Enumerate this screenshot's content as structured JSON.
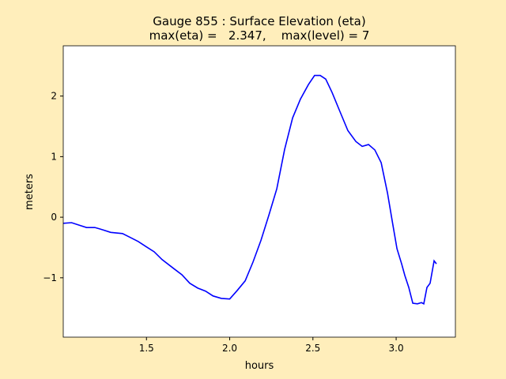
{
  "chart_data": {
    "type": "line",
    "title": [
      "Gauge 855 : Surface Elevation (eta)",
      "max(eta) =   2.347,    max(level) = 7"
    ],
    "x_label": "hours",
    "y_label": "meters",
    "xlim": [
      1.0,
      3.356
    ],
    "ylim": [
      -1.98,
      2.83
    ],
    "xticks": [
      1.5,
      {
        "value": 2.0,
        "label": "2.0"
      },
      2.5,
      {
        "value": 3.0,
        "label": "3.0"
      }
    ],
    "yticks": [
      {
        "value": -1,
        "label": "−1"
      },
      0,
      1,
      2
    ],
    "series": [
      {
        "color": "#0000ff",
        "x": [
          1.0,
          1.05,
          1.095,
          1.14,
          1.19,
          1.24,
          1.285,
          1.356,
          1.4,
          1.45,
          1.5,
          1.546,
          1.594,
          1.665,
          1.713,
          1.76,
          1.808,
          1.855,
          1.9,
          1.95,
          2.0,
          2.045,
          2.093,
          2.14,
          2.188,
          2.235,
          2.283,
          2.33,
          2.378,
          2.425,
          2.473,
          2.51,
          2.544,
          2.577,
          2.615,
          2.663,
          2.71,
          2.758,
          2.796,
          2.834,
          2.872,
          2.91,
          2.948,
          2.98,
          3.005,
          3.033,
          3.052,
          3.076,
          3.1,
          3.128,
          3.152,
          3.166,
          3.185,
          3.204,
          3.228,
          3.242
        ],
        "values": [
          -0.1,
          -0.09,
          -0.13,
          -0.17,
          -0.17,
          -0.21,
          -0.25,
          -0.27,
          -0.33,
          -0.4,
          -0.49,
          -0.57,
          -0.7,
          -0.85,
          -0.95,
          -1.09,
          -1.17,
          -1.22,
          -1.3,
          -1.34,
          -1.35,
          -1.21,
          -1.05,
          -0.74,
          -0.38,
          0.03,
          0.47,
          1.12,
          1.64,
          1.95,
          2.19,
          2.34,
          2.34,
          2.28,
          2.06,
          1.74,
          1.43,
          1.25,
          1.17,
          1.2,
          1.11,
          0.9,
          0.4,
          -0.12,
          -0.52,
          -0.77,
          -0.96,
          -1.16,
          -1.42,
          -1.43,
          -1.41,
          -1.43,
          -1.16,
          -1.09,
          -0.72,
          -0.77
        ]
      }
    ]
  }
}
